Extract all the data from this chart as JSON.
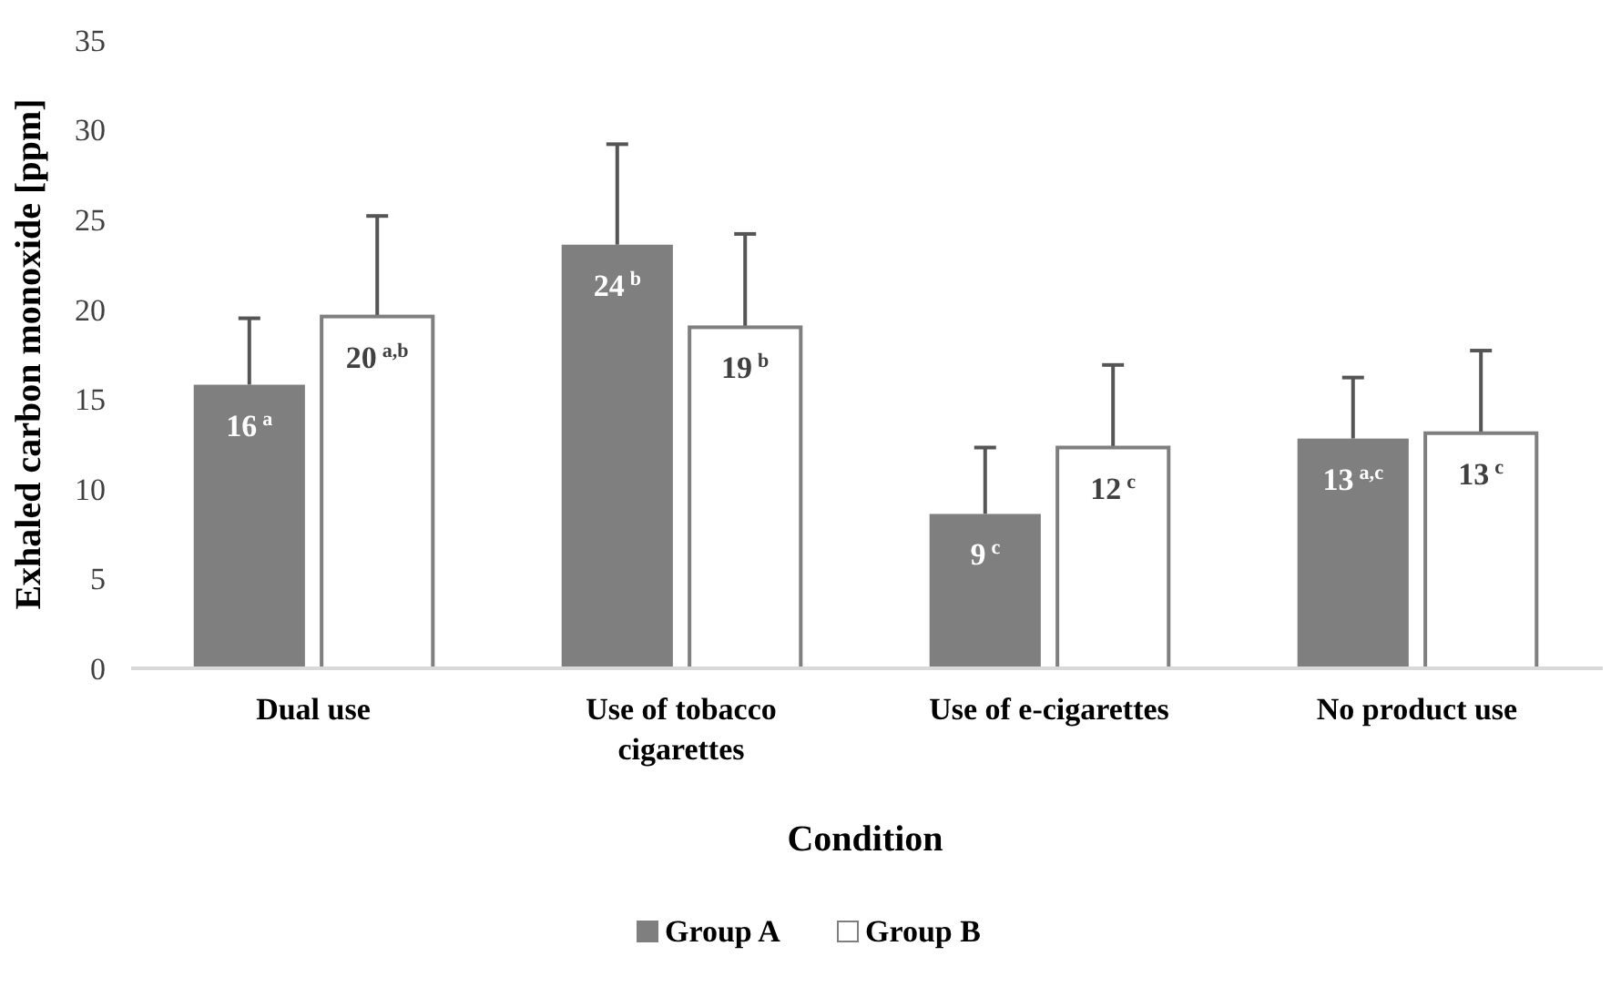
{
  "chart_data": {
    "type": "bar",
    "xlabel": "Condition",
    "ylabel": "Exhaled carbon monoxide [ppm]",
    "categories": [
      "Dual use",
      "Use of tobacco cigarettes",
      "Use of e-cigarettes",
      "No product use"
    ],
    "series": [
      {
        "name": "Group A",
        "color": "#7f7f7f",
        "values": [
          15.8,
          23.6,
          8.6,
          12.8
        ],
        "errors": [
          [
            15.8,
            19.5
          ],
          [
            23.6,
            29.2
          ],
          [
            8.6,
            12.3
          ],
          [
            12.8,
            16.2
          ]
        ],
        "value_labels": [
          "16$^{a}$",
          "24$^{b}$",
          "9$^{c}$",
          "13$^{a,c}$"
        ]
      },
      {
        "name": "Group B",
        "color": "#ffffff",
        "values": [
          19.6,
          19.0,
          12.3,
          13.1
        ],
        "errors": [
          [
            19.6,
            25.2
          ],
          [
            19.0,
            24.2
          ],
          [
            12.3,
            16.9
          ],
          [
            13.1,
            17.7
          ]
        ],
        "value_labels": [
          "20$^{a,b}$",
          "19$^{b}$",
          "12$^{c}$",
          "13$^{c}$"
        ]
      }
    ],
    "ylim": [
      0,
      35
    ],
    "yticks": [
      0,
      5,
      10,
      15,
      20,
      25,
      30,
      35
    ],
    "grid": false,
    "legend": "bottom"
  }
}
